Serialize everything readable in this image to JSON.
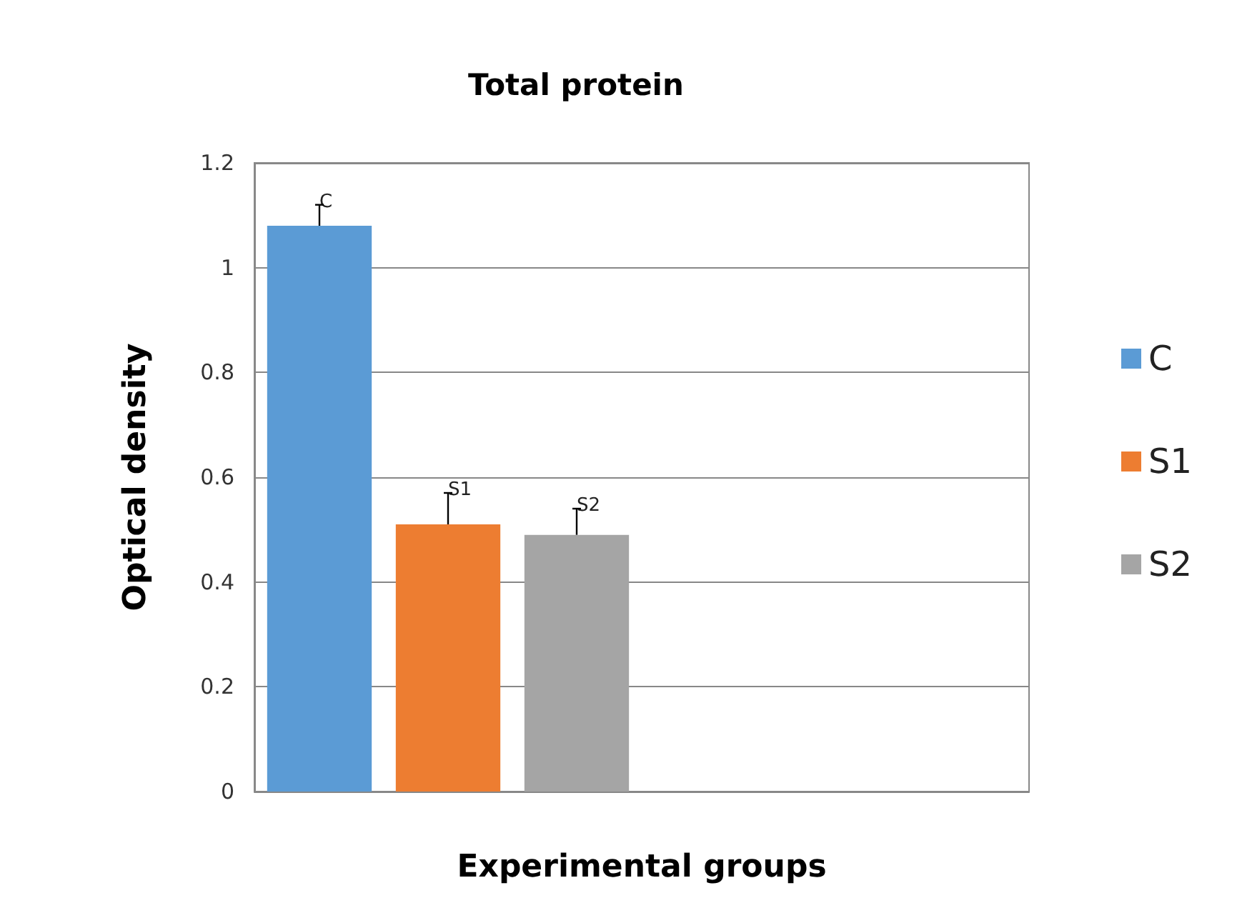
{
  "chart_data": {
    "type": "bar",
    "title": "Total protein",
    "xlabel": "Experimental groups",
    "ylabel": "Optical density",
    "categories": [
      null,
      null
    ],
    "series": [
      {
        "name": "C",
        "color": "#5b9bd5",
        "values": [
          1.08,
          null
        ],
        "errors": [
          [
            1.08,
            1.12
          ],
          null
        ],
        "value_labels": [
          "C",
          null
        ]
      },
      {
        "name": "S1",
        "color": "#ed7d31",
        "values": [
          0.51,
          null
        ],
        "errors": [
          [
            0.51,
            0.57
          ],
          null
        ],
        "value_labels": [
          "S1",
          null
        ]
      },
      {
        "name": "S2",
        "color": "#a5a5a5",
        "values": [
          0.49,
          null
        ],
        "errors": [
          [
            0.49,
            0.54
          ],
          null
        ],
        "value_labels": [
          "S2",
          null
        ]
      }
    ],
    "ylim": [
      0,
      1.2
    ],
    "yticks": [
      0,
      0.2,
      0.4,
      0.6,
      0.8,
      1,
      1.2
    ],
    "grid": "y",
    "legend": "right"
  }
}
